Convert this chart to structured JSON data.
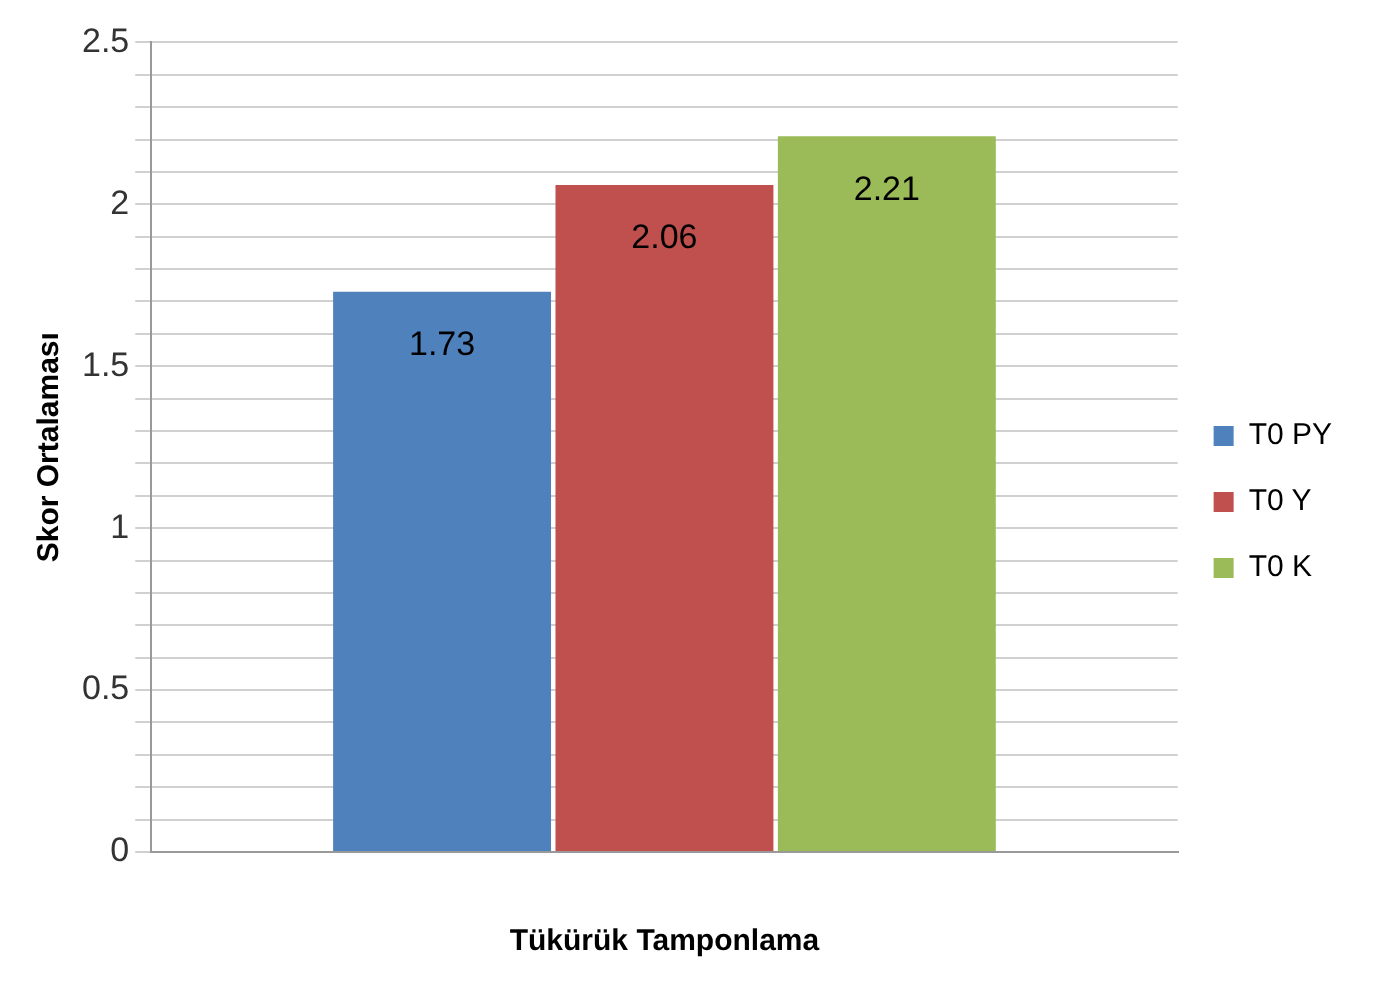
{
  "chart_data": {
    "type": "bar",
    "xlabel": "Tükürük Tamponlama",
    "ylabel": "Skor Ortalaması",
    "categories": [
      null
    ],
    "series": [
      {
        "name": "T0 PY",
        "color": "#4f81bd",
        "values": [
          1.73
        ]
      },
      {
        "name": "T0 Y",
        "color": "#c0504d",
        "values": [
          2.06
        ]
      },
      {
        "name": "T0 K",
        "color": "#9bbb59",
        "values": [
          2.21
        ]
      }
    ],
    "ylim": [
      0,
      2.5
    ],
    "yticks": [
      0,
      {
        "value": 0.1,
        "label": null
      },
      {
        "value": 0.2,
        "label": null
      },
      {
        "value": 0.3,
        "label": null
      },
      {
        "value": 0.4,
        "label": null
      },
      0.5,
      {
        "value": 0.6,
        "label": null
      },
      {
        "value": 0.7,
        "label": null
      },
      {
        "value": 0.8,
        "label": null
      },
      {
        "value": 0.9,
        "label": null
      },
      1,
      {
        "value": 1.1,
        "label": null
      },
      {
        "value": 1.2,
        "label": null
      },
      {
        "value": 1.3,
        "label": null
      },
      {
        "value": 1.4,
        "label": null
      },
      1.5,
      {
        "value": 1.6,
        "label": null
      },
      {
        "value": 1.7,
        "label": null
      },
      {
        "value": 1.8,
        "label": null
      },
      {
        "value": 1.9,
        "label": null
      },
      2,
      {
        "value": 2.1,
        "label": null
      },
      {
        "value": 2.2,
        "label": null
      },
      {
        "value": 2.3,
        "label": null
      },
      {
        "value": 2.4,
        "label": null
      },
      2.5
    ],
    "grid": "y",
    "legend": "right",
    "data_labels": true
  }
}
